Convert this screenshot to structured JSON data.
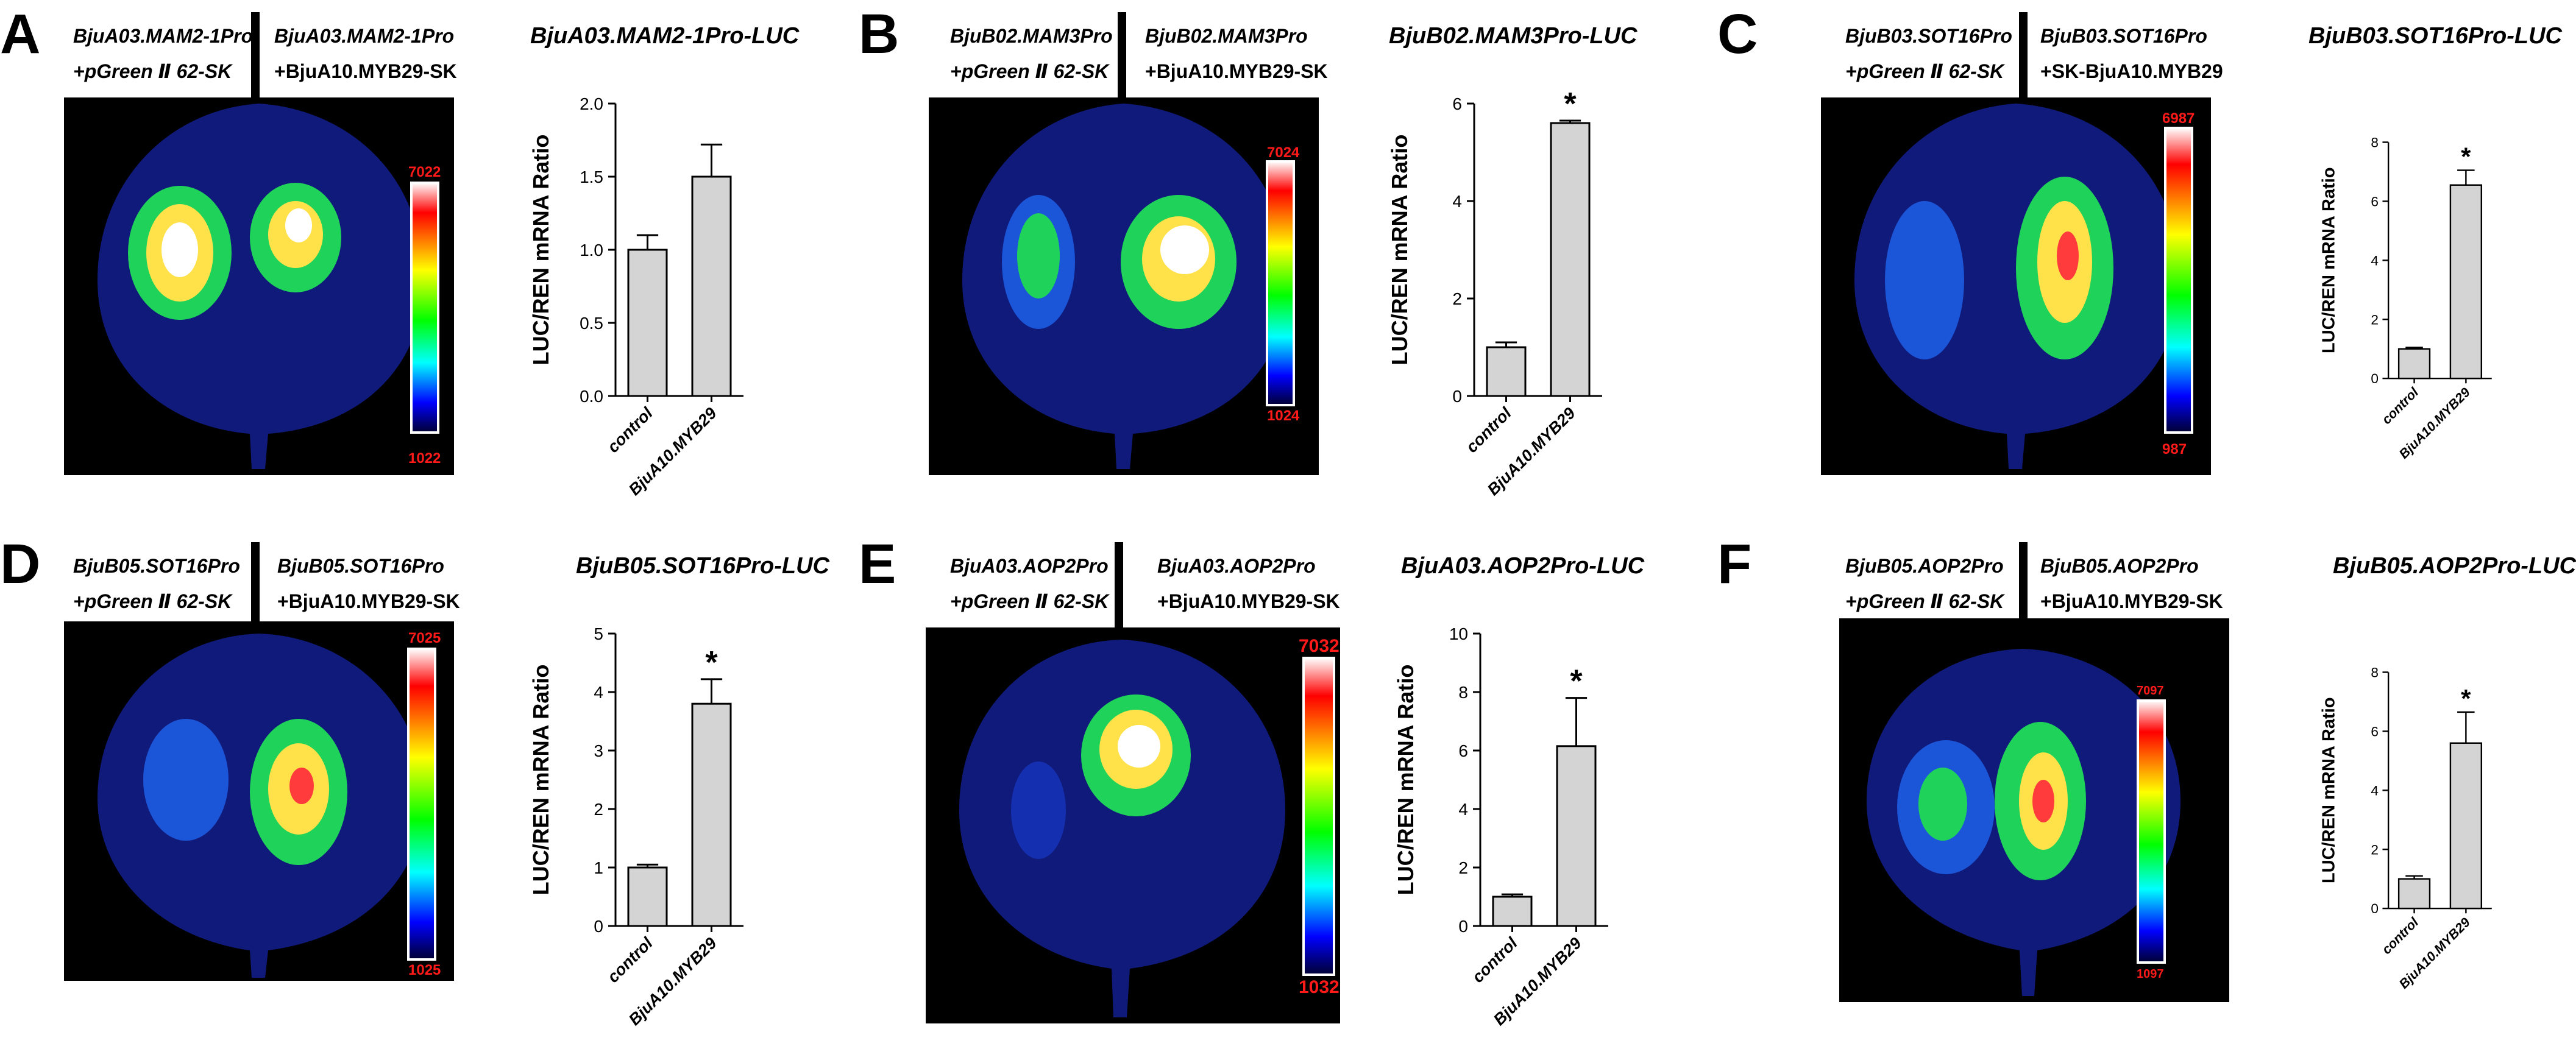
{
  "panels": [
    {
      "id": "A",
      "letter": "A",
      "left_label_1": "BjuA03.MAM2-1Pro",
      "left_label_2": "+pGreen Ⅱ 62-SK",
      "right_label_1": "BjuA03.MAM2-1Pro",
      "right_label_2": "+BjuA10.MYB29-SK",
      "scale_max": "7022",
      "scale_min": "1022",
      "chart_data": {
        "type": "bar",
        "title": "BjuA03.MAM2-1Pro-LUC",
        "ylabel": "LUC/REN mRNA Ratio",
        "categories": [
          "control",
          "BjuA10.MYB29"
        ],
        "values": [
          1.0,
          1.5
        ],
        "errors": [
          0.1,
          0.22
        ],
        "ylim": [
          0,
          2.0
        ],
        "yticks": [
          "0.0",
          "0.5",
          "1.0",
          "1.5",
          "2.0"
        ],
        "significance": [
          "",
          ""
        ]
      }
    },
    {
      "id": "B",
      "letter": "B",
      "left_label_1": "BjuB02.MAM3Pro",
      "left_label_2": "+pGreen Ⅱ 62-SK",
      "right_label_1": "BjuB02.MAM3Pro",
      "right_label_2": "+BjuA10.MYB29-SK",
      "scale_max": "7024",
      "scale_min": "1024",
      "chart_data": {
        "type": "bar",
        "title": "BjuB02.MAM3Pro-LUC",
        "ylabel": "LUC/REN mRNA Ratio",
        "categories": [
          "control",
          "BjuA10.MYB29"
        ],
        "values": [
          1.0,
          5.6
        ],
        "errors": [
          0.1,
          0.05
        ],
        "ylim": [
          0,
          6
        ],
        "yticks": [
          "0",
          "2",
          "4",
          "6"
        ],
        "significance": [
          "",
          "*"
        ]
      }
    },
    {
      "id": "C",
      "letter": "C",
      "left_label_1": "BjuB03.SOT16Pro",
      "left_label_2": "+pGreen Ⅱ 62-SK",
      "right_label_1": "BjuB03.SOT16Pro",
      "right_label_2": "+SK-BjuA10.MYB29",
      "scale_max": "6987",
      "scale_min": "987",
      "chart_data": {
        "type": "bar",
        "title": "BjuB03.SOT16Pro-LUC",
        "ylabel": "LUC/REN mRNA Ratio",
        "categories": [
          "control",
          "BjuA10.MYB29"
        ],
        "values": [
          1.0,
          6.55
        ],
        "errors": [
          0.05,
          0.5
        ],
        "ylim": [
          0,
          8
        ],
        "yticks": [
          "0",
          "2",
          "4",
          "6",
          "8"
        ],
        "significance": [
          "",
          "*"
        ]
      }
    },
    {
      "id": "D",
      "letter": "D",
      "left_label_1": "BjuB05.SOT16Pro",
      "left_label_2": "+pGreen Ⅱ 62-SK",
      "right_label_1": "BjuB05.SOT16Pro",
      "right_label_2": "+BjuA10.MYB29-SK",
      "scale_max": "7025",
      "scale_min": "1025",
      "chart_data": {
        "type": "bar",
        "title": "BjuB05.SOT16Pro-LUC",
        "ylabel": "LUC/REN mRNA Ratio",
        "categories": [
          "control",
          "BjuA10.MYB29"
        ],
        "values": [
          1.0,
          3.8
        ],
        "errors": [
          0.05,
          0.42
        ],
        "ylim": [
          0,
          5
        ],
        "yticks": [
          "0",
          "1",
          "2",
          "3",
          "4",
          "5"
        ],
        "significance": [
          "",
          "*"
        ]
      }
    },
    {
      "id": "E",
      "letter": "E",
      "left_label_1": "BjuA03.AOP2Pro",
      "left_label_2": "+pGreen Ⅱ 62-SK",
      "right_label_1": "BjuA03.AOP2Pro",
      "right_label_2": "+BjuA10.MYB29-SK",
      "scale_max": "7032",
      "scale_min": "1032",
      "chart_data": {
        "type": "bar",
        "title": "BjuA03.AOP2Pro-LUC",
        "ylabel": "LUC/REN mRNA Ratio",
        "categories": [
          "control",
          "BjuA10.MYB29"
        ],
        "values": [
          1.0,
          6.15
        ],
        "errors": [
          0.08,
          1.65
        ],
        "ylim": [
          0,
          10
        ],
        "yticks": [
          "0",
          "2",
          "4",
          "6",
          "8",
          "10"
        ],
        "significance": [
          "",
          "*"
        ]
      }
    },
    {
      "id": "F",
      "letter": "F",
      "left_label_1": "BjuB05.AOP2Pro",
      "left_label_2": "+pGreen Ⅱ 62-SK",
      "right_label_1": "BjuB05.AOP2Pro",
      "right_label_2": "+BjuA10.MYB29-SK",
      "scale_max": "7097",
      "scale_min": "1097",
      "chart_data": {
        "type": "bar",
        "title": "BjuB05.AOP2Pro-LUC",
        "ylabel": "LUC/REN mRNA Ratio",
        "categories": [
          "control",
          "BjuA10.MYB29"
        ],
        "values": [
          1.0,
          5.6
        ],
        "errors": [
          0.1,
          1.05
        ],
        "ylim": [
          0,
          8
        ],
        "yticks": [
          "0",
          "2",
          "4",
          "6",
          "8"
        ],
        "significance": [
          "",
          "*"
        ]
      }
    }
  ],
  "colors": {
    "bar_fill": "#d4d4d4",
    "axis": "#000000",
    "leaf": "#101a7a",
    "scale_label": "#ff1a1a"
  }
}
